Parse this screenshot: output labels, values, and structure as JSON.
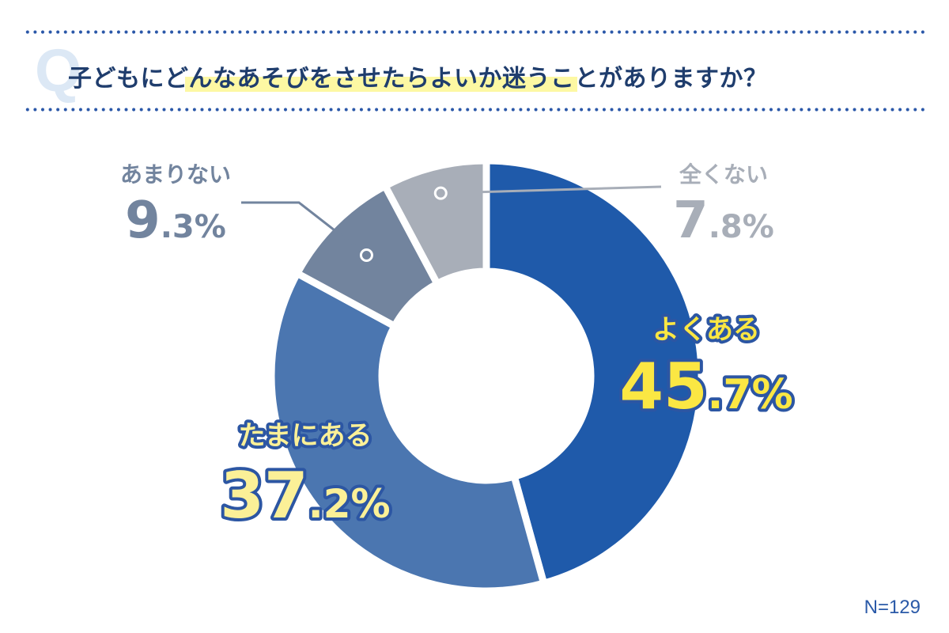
{
  "question": {
    "mark": "Q",
    "text": "子どもにどんなあそびをさせたらよいか迷うことがありますか？"
  },
  "sample": "N=129",
  "chart_data": {
    "type": "pie",
    "donut": true,
    "categories": [
      "よくある",
      "たまにある",
      "あまりない",
      "全くない"
    ],
    "values": [
      45.7,
      37.2,
      9.3,
      7.8
    ],
    "value_labels": [
      "45.7%",
      "37.2%",
      "9.3%",
      "7.8%"
    ],
    "colors": [
      "#1f5aaa",
      "#4b76b0",
      "#72849e",
      "#a8aeb8"
    ],
    "label_colors": [
      "#fbe743",
      "#fbf097",
      "#72849e",
      "#a8aeb8"
    ],
    "start": "12 o'clock",
    "direction": "clockwise"
  }
}
